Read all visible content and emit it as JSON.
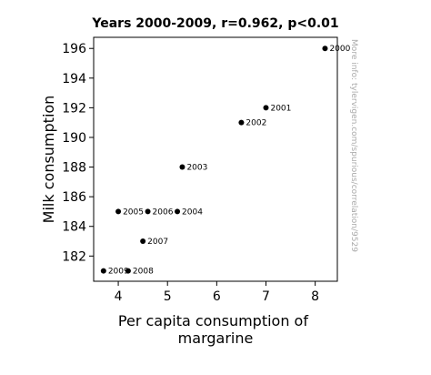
{
  "chart_data": {
    "type": "scatter",
    "title": "Years 2000-2009, r=0.962, p<0.01",
    "xlabel_lines": [
      "Per capita consumption of",
      "margarine"
    ],
    "ylabel": "Milk consumption",
    "watermark": "More info: tylervigen.com/spurious/correlation/9529",
    "xlim": [
      3.5,
      8.45
    ],
    "ylim": [
      180.3,
      196.75
    ],
    "xticks": [
      4,
      5,
      6,
      7,
      8
    ],
    "yticks": [
      182,
      184,
      186,
      188,
      190,
      192,
      194,
      196
    ],
    "grid": false,
    "marker_color": "#000000",
    "points": [
      {
        "x": 8.2,
        "y": 196,
        "label": "2000"
      },
      {
        "x": 7.0,
        "y": 192,
        "label": "2001"
      },
      {
        "x": 6.5,
        "y": 191,
        "label": "2002"
      },
      {
        "x": 5.3,
        "y": 188,
        "label": "2003"
      },
      {
        "x": 5.2,
        "y": 185,
        "label": "2004"
      },
      {
        "x": 4.0,
        "y": 185,
        "label": "2005"
      },
      {
        "x": 4.6,
        "y": 185,
        "label": "2006"
      },
      {
        "x": 4.5,
        "y": 183,
        "label": "2007"
      },
      {
        "x": 4.2,
        "y": 181,
        "label": "2008"
      },
      {
        "x": 3.7,
        "y": 181,
        "label": "2009"
      }
    ]
  }
}
